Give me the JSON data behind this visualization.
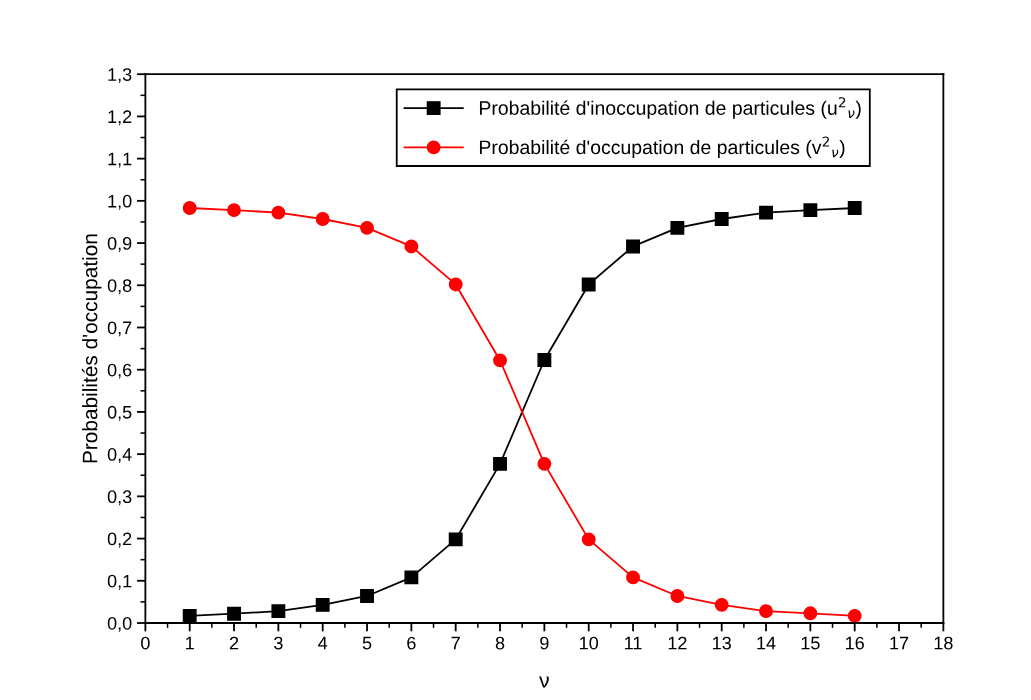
{
  "chart_data": {
    "type": "line",
    "xlabel": "ν",
    "ylabel": "Probabilités d'occupation",
    "x": [
      1,
      2,
      3,
      4,
      5,
      6,
      7,
      8,
      9,
      10,
      11,
      12,
      13,
      14,
      15,
      16
    ],
    "series": [
      {
        "name": "Probabilité d'inoccupation de particules (u$^{2}$$_{ν}$)",
        "color": "#000000",
        "marker": "square",
        "values": [
          0.017,
          0.022,
          0.028,
          0.043,
          0.064,
          0.108,
          0.198,
          0.377,
          0.623,
          0.802,
          0.892,
          0.936,
          0.957,
          0.972,
          0.978,
          0.983
        ]
      },
      {
        "name": "Probabilité d'occupation de particules (v$^{2}$$_{ν}$)",
        "color": "#ff0000",
        "marker": "circle",
        "values": [
          0.983,
          0.978,
          0.972,
          0.957,
          0.936,
          0.892,
          0.802,
          0.622,
          0.377,
          0.198,
          0.108,
          0.064,
          0.043,
          0.028,
          0.023,
          0.017
        ]
      }
    ],
    "xlim": [
      0,
      18
    ],
    "xticks": [
      0,
      1,
      2,
      3,
      4,
      5,
      6,
      7,
      8,
      9,
      10,
      11,
      12,
      13,
      14,
      15,
      16,
      17,
      18
    ],
    "ylim": [
      0,
      1.3
    ],
    "yticks": [
      {
        "value": 0,
        "label": "0,0"
      },
      {
        "value": 0.1,
        "label": "0,1"
      },
      {
        "value": 0.2,
        "label": "0,2"
      },
      {
        "value": 0.3,
        "label": "0,3"
      },
      {
        "value": 0.4,
        "label": "0,4"
      },
      {
        "value": 0.5,
        "label": "0,5"
      },
      {
        "value": 0.6,
        "label": "0,6"
      },
      {
        "value": 0.7,
        "label": "0,7"
      },
      {
        "value": 0.8,
        "label": "0,8"
      },
      {
        "value": 0.9,
        "label": "0,9"
      },
      {
        "value": 1.0,
        "label": "1,0"
      },
      {
        "value": 1.1,
        "label": "1,1"
      },
      {
        "value": 1.2,
        "label": "1,2"
      },
      {
        "value": 1.3,
        "label": "1,3"
      }
    ],
    "grid": false,
    "legend": "top right",
    "line_style": "solid"
  }
}
